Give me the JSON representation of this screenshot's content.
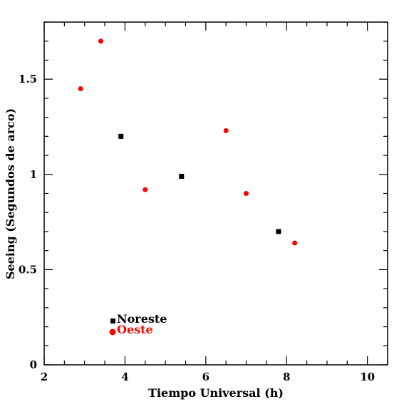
{
  "chart_data": {
    "type": "scatter",
    "xlabel": "Tiempo Universal (h)",
    "ylabel": "Seeing (Segundos de arco)",
    "xlim": [
      2,
      10.5
    ],
    "ylim": [
      0,
      1.8
    ],
    "x_ticks": [
      2,
      4,
      6,
      8,
      10
    ],
    "x_tick_labels": [
      "2",
      "4",
      "6",
      "8",
      "10"
    ],
    "y_ticks": [
      0,
      0.5,
      1,
      1.5
    ],
    "y_tick_labels": [
      "0",
      "0.5",
      "1",
      "1.5"
    ],
    "grid": false,
    "legend_position": "lower-left",
    "series": [
      {
        "name": "Noreste",
        "marker": "square",
        "color": "#000000",
        "x": [
          3.9,
          5.4,
          7.8
        ],
        "y": [
          1.2,
          0.99,
          0.7
        ]
      },
      {
        "name": "Oeste",
        "marker": "circle",
        "color": "#ff0000",
        "x": [
          2.9,
          3.4,
          4.5,
          6.5,
          7.0,
          8.2
        ],
        "y": [
          1.45,
          1.7,
          0.92,
          1.23,
          0.9,
          0.64
        ]
      }
    ]
  }
}
